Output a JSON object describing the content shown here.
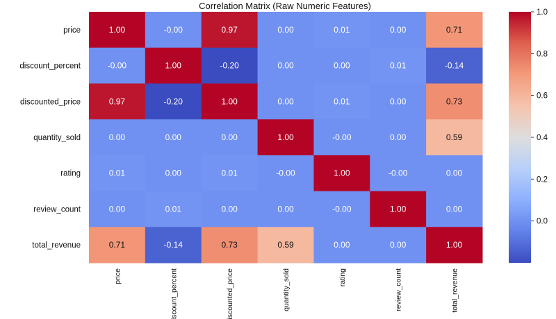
{
  "chart_data": {
    "type": "heatmap",
    "title": "Correlation Matrix (Raw Numeric Features)",
    "row_labels": [
      "price",
      "discount_percent",
      "discounted_price",
      "quantity_sold",
      "rating",
      "review_count",
      "total_revenue"
    ],
    "col_labels": [
      "price",
      "discount_percent",
      "discounted_price",
      "quantity_sold",
      "rating",
      "review_count",
      "total_revenue"
    ],
    "values": [
      [
        1.0,
        -0.0,
        0.97,
        0.0,
        0.01,
        0.0,
        0.71
      ],
      [
        -0.0,
        1.0,
        -0.2,
        0.0,
        0.0,
        0.01,
        -0.14
      ],
      [
        0.97,
        -0.2,
        1.0,
        0.0,
        0.01,
        0.0,
        0.73
      ],
      [
        0.0,
        0.0,
        0.0,
        1.0,
        -0.0,
        0.0,
        0.59
      ],
      [
        0.01,
        0.0,
        0.01,
        -0.0,
        1.0,
        -0.0,
        0.0
      ],
      [
        0.0,
        0.01,
        0.0,
        0.0,
        -0.0,
        1.0,
        0.0
      ],
      [
        0.71,
        -0.14,
        0.73,
        0.59,
        0.0,
        0.0,
        1.0
      ]
    ],
    "cell_labels": [
      [
        "1.00",
        "-0.00",
        "0.97",
        "0.00",
        "0.01",
        "0.00",
        "0.71"
      ],
      [
        "-0.00",
        "1.00",
        "-0.20",
        "0.00",
        "0.00",
        "0.01",
        "-0.14"
      ],
      [
        "0.97",
        "-0.20",
        "1.00",
        "0.00",
        "0.01",
        "0.00",
        "0.73"
      ],
      [
        "0.00",
        "0.00",
        "0.00",
        "1.00",
        "-0.00",
        "0.00",
        "0.59"
      ],
      [
        "0.01",
        "0.00",
        "0.01",
        "-0.00",
        "1.00",
        "-0.00",
        "0.00"
      ],
      [
        "0.00",
        "0.01",
        "0.00",
        "0.00",
        "-0.00",
        "1.00",
        "0.00"
      ],
      [
        "0.71",
        "-0.14",
        "0.73",
        "0.59",
        "0.00",
        "0.00",
        "1.00"
      ]
    ],
    "colormap": "coolwarm",
    "vmin": -0.2,
    "vmax": 1.0,
    "colorbar_ticks": [
      "0.0",
      "0.2",
      "0.4",
      "0.6",
      "0.8",
      "1.0"
    ],
    "colorbar_tick_values": [
      0.0,
      0.2,
      0.4,
      0.6,
      0.8,
      1.0
    ]
  }
}
